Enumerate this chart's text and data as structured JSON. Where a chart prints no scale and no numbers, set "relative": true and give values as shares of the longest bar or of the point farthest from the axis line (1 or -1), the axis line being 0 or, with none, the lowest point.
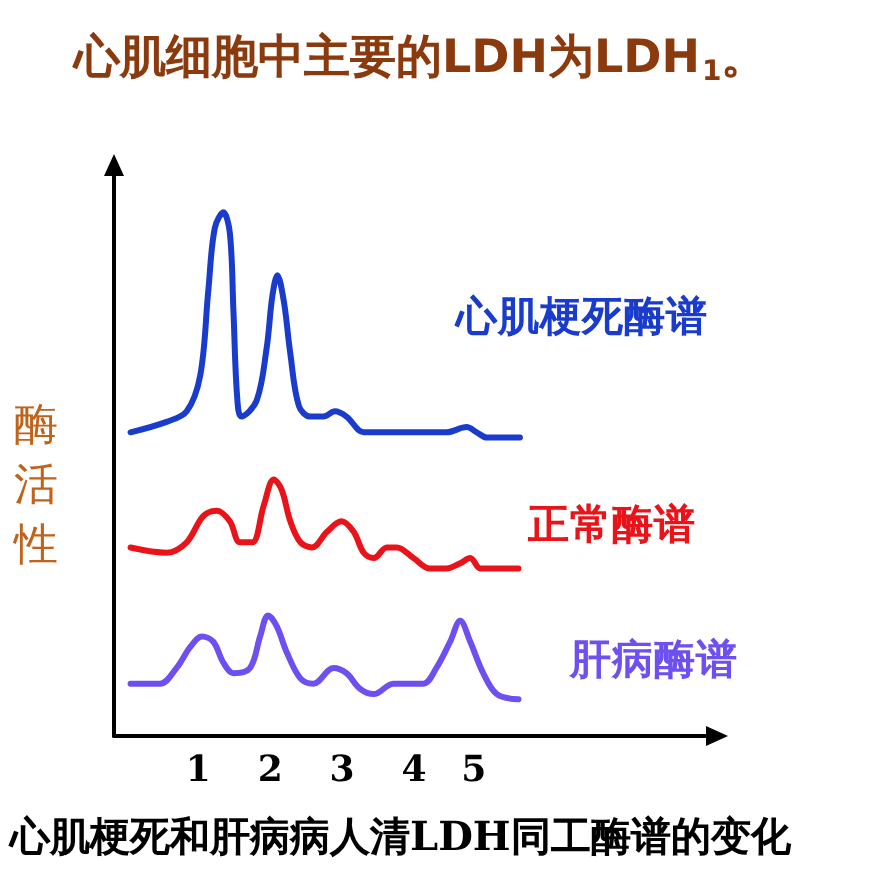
{
  "chart_data": {
    "type": "line",
    "title": "心肌细胞中主要的LDH为LDH$_{1}$。",
    "ylabel": "酶活性",
    "annotations": [
      "心肌梗死和肝病病人清LDH同工酶谱的变化"
    ],
    "relative": true,
    "xlim": [
      -0.17,
      8.25
    ],
    "xticks": [
      1,
      2,
      3,
      4,
      {
        "value": 4.83,
        "label": "5"
      }
    ],
    "grid": false,
    "legend": false,
    "marker": "none",
    "line_style": "solid",
    "series": [
      {
        "name": "心肌梗死酶谱",
        "color": "#1a3ccc",
        "x": [
          0.06,
          0.56,
          0.84,
          1.03,
          1.14,
          1.23,
          1.35,
          1.44,
          1.49,
          1.54,
          1.6,
          1.81,
          1.95,
          2.03,
          2.1,
          2.19,
          2.28,
          2.4,
          2.56,
          2.74,
          2.9,
          3.06,
          3.3,
          3.53,
          4.08,
          4.45,
          4.73,
          4.87,
          5.01,
          5.47
        ],
        "values": [
          0.58,
          0.6,
          0.62,
          0.69,
          0.85,
          0.97,
          1,
          0.96,
          0.81,
          0.65,
          0.61,
          0.64,
          0.74,
          0.84,
          0.88,
          0.83,
          0.73,
          0.63,
          0.61,
          0.61,
          0.62,
          0.61,
          0.58,
          0.58,
          0.58,
          0.58,
          0.59,
          0.58,
          0.57,
          0.57
        ]
      },
      {
        "name": "正常酶谱",
        "color": "#e8141a",
        "x": [
          0.06,
          0.56,
          0.84,
          1.07,
          1.26,
          1.44,
          1.58,
          1.75,
          1.91,
          2.05,
          2.16,
          2.28,
          2.42,
          2.58,
          2.79,
          2.99,
          3.16,
          3.3,
          3.44,
          3.62,
          3.76,
          3.99,
          4.22,
          4.45,
          4.64,
          4.78,
          4.92,
          5.1,
          5.45
        ],
        "values": [
          0.36,
          0.35,
          0.37,
          0.42,
          0.43,
          0.41,
          0.37,
          0.37,
          0.44,
          0.49,
          0.47,
          0.41,
          0.37,
          0.36,
          0.39,
          0.41,
          0.39,
          0.35,
          0.34,
          0.36,
          0.36,
          0.34,
          0.32,
          0.32,
          0.33,
          0.34,
          0.32,
          0.32,
          0.32
        ]
      },
      {
        "name": "肝病酶谱",
        "color": "#6e50f0",
        "x": [
          0.06,
          0.47,
          0.7,
          0.89,
          1.05,
          1.21,
          1.35,
          1.49,
          1.72,
          1.86,
          1.97,
          2.09,
          2.23,
          2.42,
          2.6,
          2.88,
          3.06,
          3.25,
          3.44,
          3.71,
          3.9,
          4.13,
          4.31,
          4.5,
          4.64,
          4.78,
          4.96,
          5.15,
          5.45
        ],
        "values": [
          0.1,
          0.1,
          0.13,
          0.17,
          0.19,
          0.18,
          0.14,
          0.12,
          0.13,
          0.19,
          0.23,
          0.21,
          0.16,
          0.11,
          0.1,
          0.13,
          0.12,
          0.09,
          0.08,
          0.1,
          0.1,
          0.1,
          0.13,
          0.18,
          0.22,
          0.18,
          0.12,
          0.08,
          0.07
        ]
      }
    ]
  }
}
